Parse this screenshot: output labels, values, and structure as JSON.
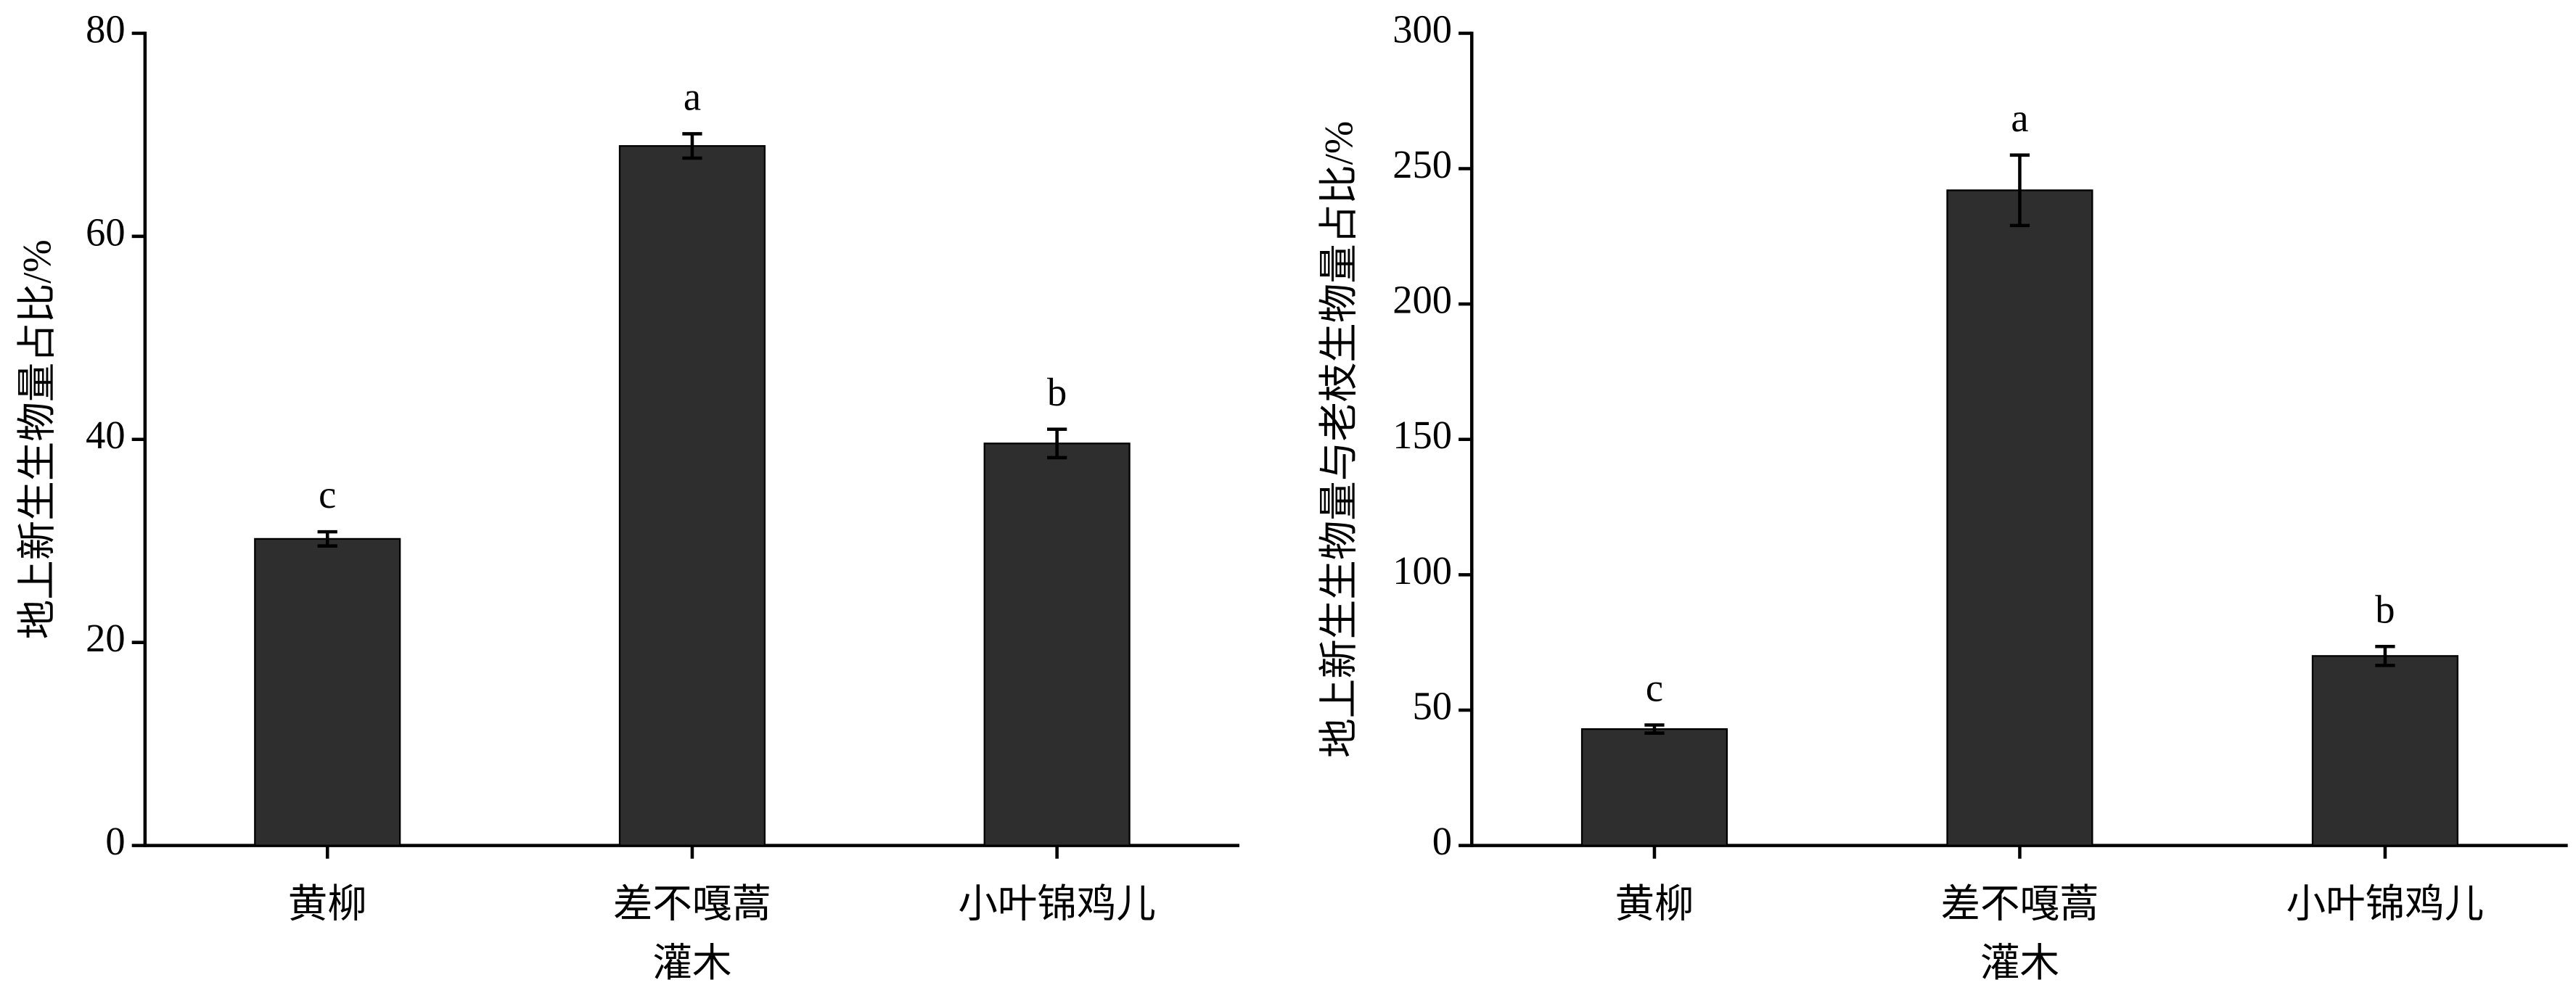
{
  "chart_data": [
    {
      "type": "bar",
      "ylabel": "地上新生生物量占比/%",
      "xlabel": "灌木",
      "categories": [
        "黄柳",
        "差不嘎蒿",
        "小叶锦鸡儿"
      ],
      "values": [
        30.2,
        68.9,
        39.6
      ],
      "errors": [
        0.7,
        1.2,
        1.4
      ],
      "annotations": [
        "c",
        "a",
        "b"
      ],
      "color": "#2e2e2e",
      "ylim": [
        0,
        80
      ],
      "yticks": [
        0,
        20,
        40,
        60,
        80
      ]
    },
    {
      "type": "bar",
      "ylabel": "地上新生生物量与老枝生物量占比/%",
      "xlabel": "灌木",
      "categories": [
        "黄柳",
        "差不嘎蒿",
        "小叶锦鸡儿"
      ],
      "values": [
        43,
        242,
        70
      ],
      "errors": [
        1.5,
        13,
        3.5
      ],
      "annotations": [
        "c",
        "a",
        "b"
      ],
      "color": "#2e2e2e",
      "ylim": [
        0,
        300
      ],
      "yticks": [
        0,
        50,
        100,
        150,
        200,
        250,
        300
      ]
    }
  ]
}
